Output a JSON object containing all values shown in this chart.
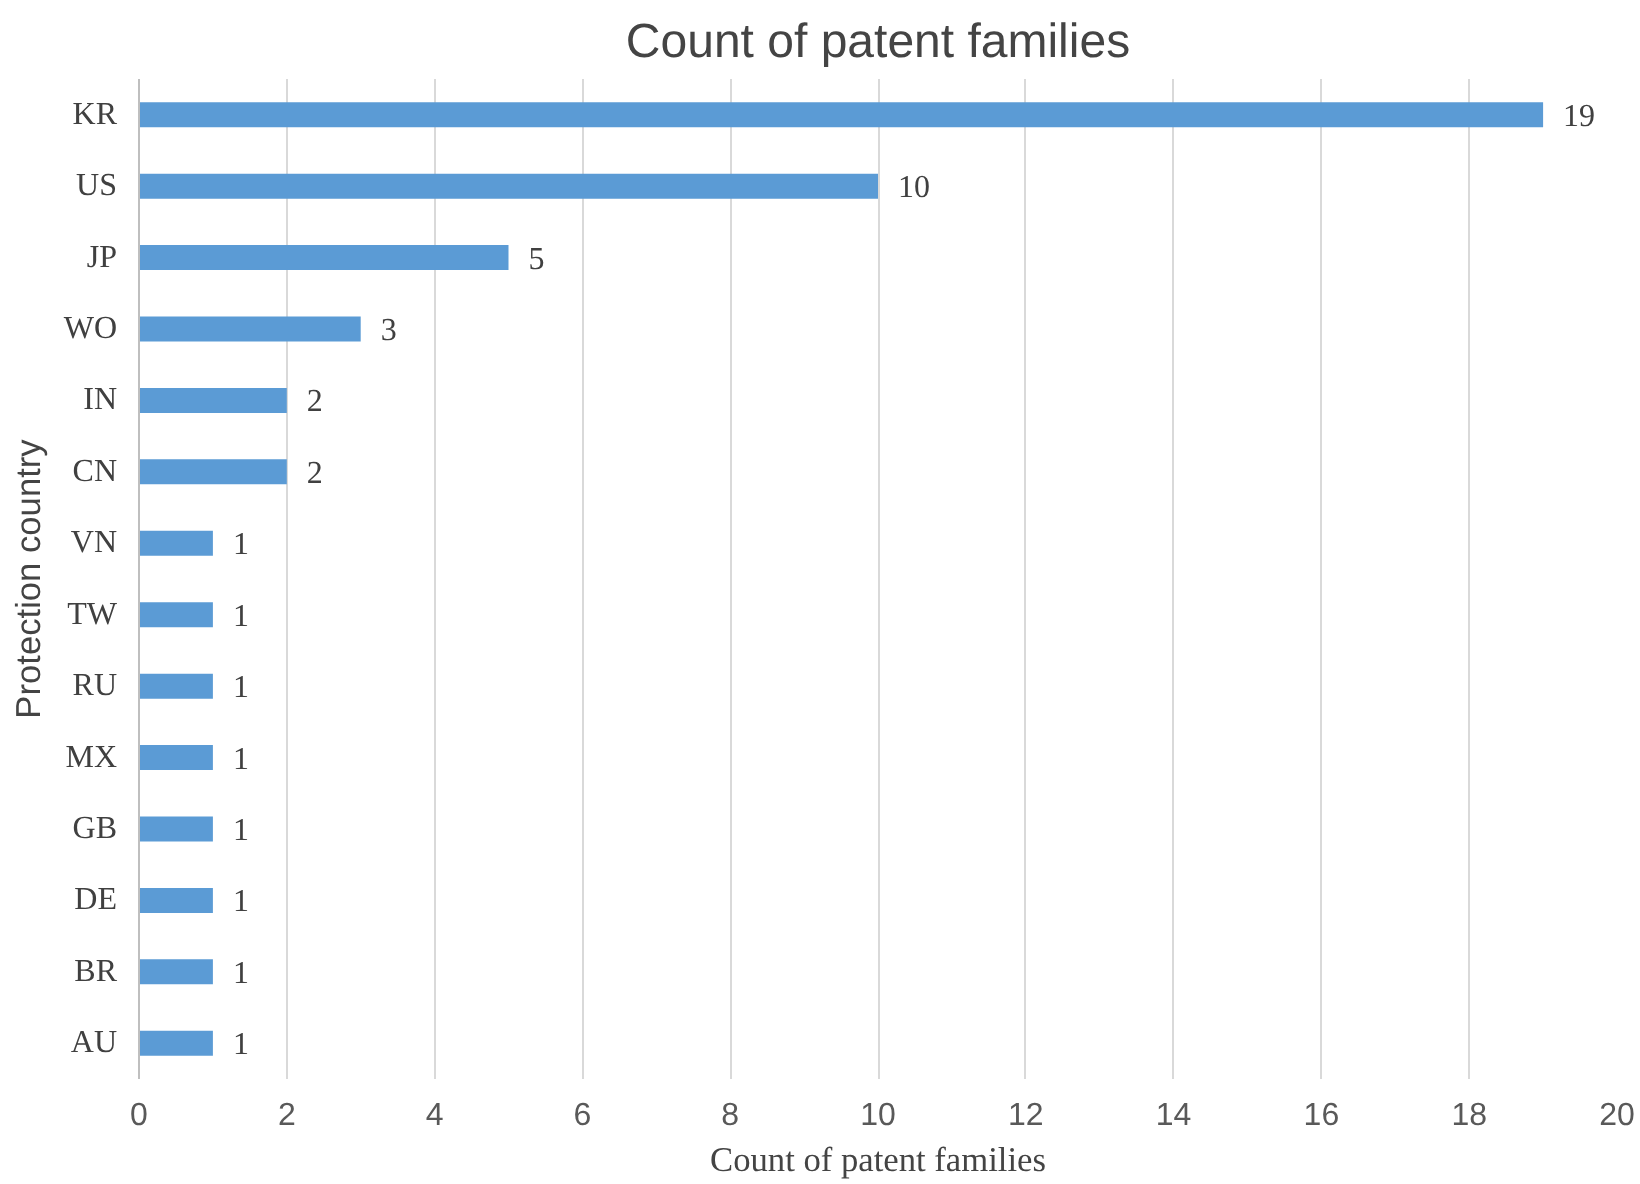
{
  "chart_data": {
    "type": "bar",
    "orientation": "horizontal",
    "title": "Count of patent families",
    "xlabel": "Count of patent families",
    "ylabel": "Protection country",
    "categories": [
      "KR",
      "US",
      "JP",
      "WO",
      "IN",
      "CN",
      "VN",
      "TW",
      "RU",
      "MX",
      "GB",
      "DE",
      "BR",
      "AU"
    ],
    "values": [
      19,
      10,
      5,
      3,
      2,
      2,
      1,
      1,
      1,
      1,
      1,
      1,
      1,
      1
    ],
    "color": "#5b9bd5",
    "xlim": [
      0,
      20
    ],
    "xticks": [
      0,
      2,
      4,
      6,
      8,
      10,
      12,
      14,
      16,
      18,
      20
    ],
    "grid": "x",
    "data_labels": true
  }
}
